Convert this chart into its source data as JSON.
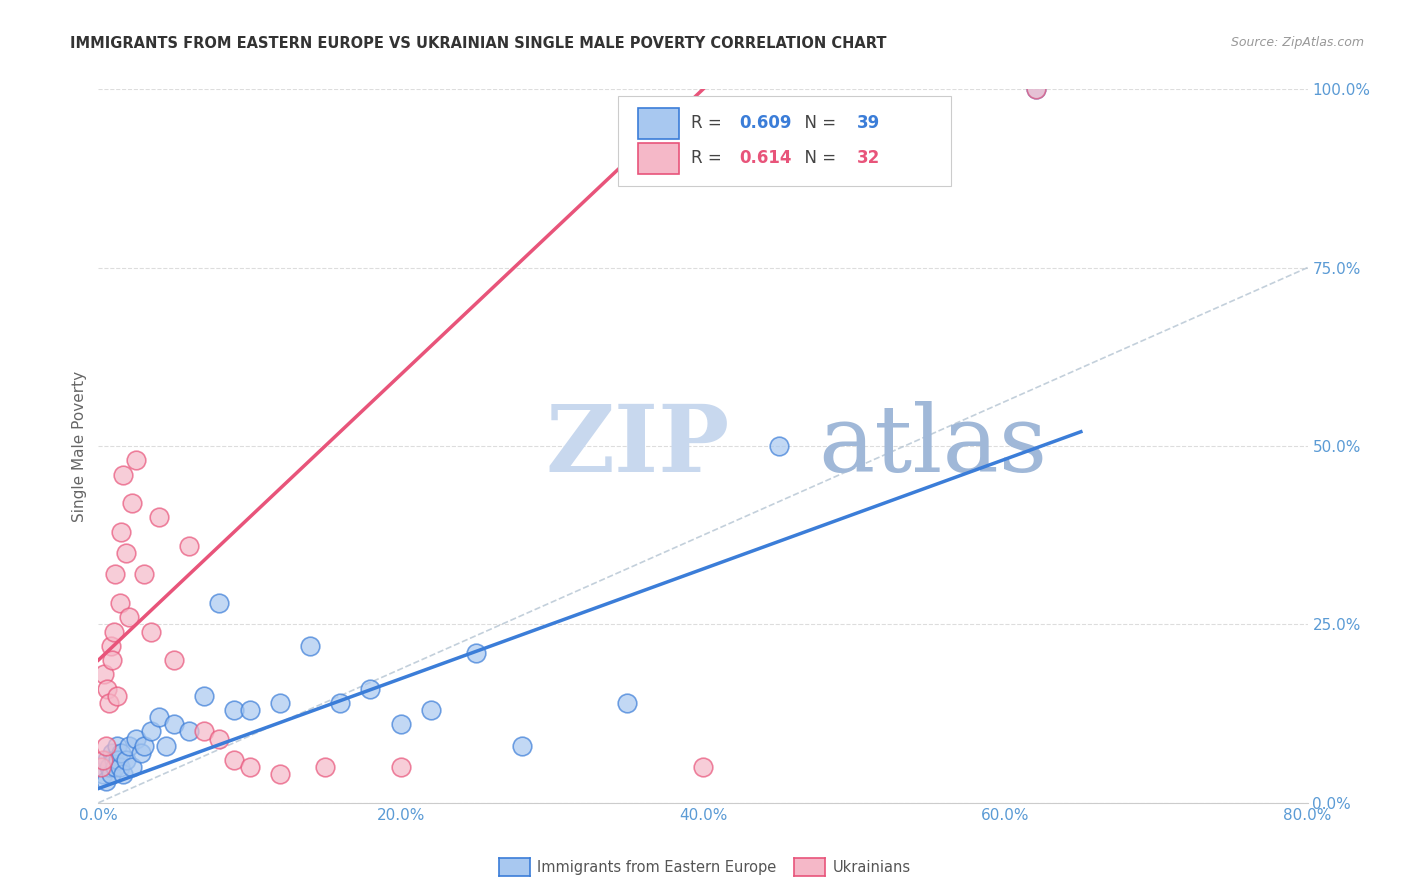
{
  "title": "IMMIGRANTS FROM EASTERN EUROPE VS UKRAINIAN SINGLE MALE POVERTY CORRELATION CHART",
  "source": "Source: ZipAtlas.com",
  "ylabel": "Single Male Poverty",
  "legend_label1": "Immigrants from Eastern Europe",
  "legend_label2": "Ukrainians",
  "R1": "0.609",
  "N1": "39",
  "R2": "0.614",
  "N2": "32",
  "color_blue_fill": "#A8C8F0",
  "color_pink_fill": "#F5B8C8",
  "color_trendline_blue": "#3B7DD8",
  "color_trendline_pink": "#E8547A",
  "color_axis": "#5B9BD5",
  "color_title": "#333333",
  "watermark_zip_color": "#C8D8EE",
  "watermark_atlas_color": "#A0B8D8",
  "watermark_text1": "ZIP",
  "watermark_text2": "atlas",
  "blue_scatter_x": [
    0.3,
    0.5,
    0.6,
    0.7,
    0.8,
    0.9,
    1.0,
    1.1,
    1.2,
    1.3,
    1.4,
    1.5,
    1.6,
    1.8,
    2.0,
    2.2,
    2.5,
    2.8,
    3.0,
    3.5,
    4.0,
    4.5,
    5.0,
    6.0,
    7.0,
    8.0,
    9.0,
    10.0,
    12.0,
    14.0,
    16.0,
    18.0,
    20.0,
    22.0,
    25.0,
    28.0,
    35.0,
    45.0,
    62.0
  ],
  "blue_scatter_y": [
    4.0,
    3.0,
    6.0,
    5.0,
    4.0,
    7.0,
    6.0,
    5.0,
    8.0,
    6.0,
    5.0,
    7.0,
    4.0,
    6.0,
    8.0,
    5.0,
    9.0,
    7.0,
    8.0,
    10.0,
    12.0,
    8.0,
    11.0,
    10.0,
    15.0,
    28.0,
    13.0,
    13.0,
    14.0,
    22.0,
    14.0,
    16.0,
    11.0,
    13.0,
    21.0,
    8.0,
    14.0,
    50.0,
    100.0
  ],
  "pink_scatter_x": [
    0.2,
    0.3,
    0.4,
    0.5,
    0.6,
    0.7,
    0.8,
    0.9,
    1.0,
    1.1,
    1.2,
    1.4,
    1.5,
    1.6,
    1.8,
    2.0,
    2.2,
    2.5,
    3.0,
    3.5,
    4.0,
    5.0,
    6.0,
    7.0,
    8.0,
    9.0,
    10.0,
    12.0,
    15.0,
    20.0,
    40.0,
    62.0
  ],
  "pink_scatter_y": [
    5.0,
    6.0,
    18.0,
    8.0,
    16.0,
    14.0,
    22.0,
    20.0,
    24.0,
    32.0,
    15.0,
    28.0,
    38.0,
    46.0,
    35.0,
    26.0,
    42.0,
    48.0,
    32.0,
    24.0,
    40.0,
    20.0,
    36.0,
    10.0,
    9.0,
    6.0,
    5.0,
    4.0,
    5.0,
    5.0,
    5.0,
    100.0
  ],
  "blue_trend_x0": 0,
  "blue_trend_y0": 2.0,
  "blue_trend_x1": 65,
  "blue_trend_y1": 52.0,
  "pink_trend_x0": 0,
  "pink_trend_y0": 20.0,
  "pink_trend_x1": 40,
  "pink_trend_y1": 100.0,
  "dash_x0": 0,
  "dash_y0": 0,
  "dash_x1": 80,
  "dash_y1": 75,
  "xlim": [
    0,
    80
  ],
  "ylim": [
    0,
    100
  ],
  "ytick_values": [
    0,
    25,
    50,
    75,
    100
  ],
  "ytick_labels": [
    "0.0%",
    "25.0%",
    "50.0%",
    "75.0%",
    "100.0%"
  ],
  "xtick_values": [
    0,
    20,
    40,
    60,
    80
  ],
  "xtick_labels": [
    "0.0%",
    "20.0%",
    "40.0%",
    "60.0%",
    "80.0%"
  ]
}
